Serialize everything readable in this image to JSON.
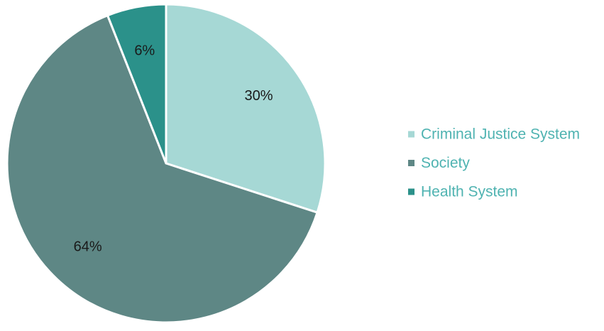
{
  "chart_data": {
    "type": "pie",
    "title": "",
    "slices": [
      {
        "label": "Criminal Justice System",
        "value": 30,
        "value_label": "30%",
        "color": "#a6d8d5"
      },
      {
        "label": "Society",
        "value": 64,
        "value_label": "64%",
        "color": "#5e8785"
      },
      {
        "label": "Health System",
        "value": 6,
        "value_label": "6%",
        "color": "#2b918a"
      }
    ],
    "start": "12 o'clock",
    "direction": "clockwise",
    "legend_placement": "right",
    "legend_text_color": "#4fb3b1"
  }
}
